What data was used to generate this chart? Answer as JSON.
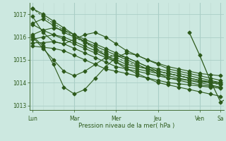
{
  "title": "Pression niveau de la mer( hPa )",
  "bg_color": "#cce8e0",
  "line_color": "#2d5a1b",
  "grid_major_color": "#aacec6",
  "grid_minor_color": "#bcd8d0",
  "ylim": [
    1012.8,
    1017.5
  ],
  "yticks": [
    1013,
    1014,
    1015,
    1016,
    1017
  ],
  "day_labels": [
    "Lun",
    "Mar",
    "Mer",
    "Jeu",
    "Ven",
    "Sa"
  ],
  "day_ticks": [
    0,
    4,
    8,
    12,
    16,
    18
  ],
  "total_steps": 19,
  "series": [
    [
      1017.25,
      1017.0,
      1016.7,
      1016.4,
      1016.1,
      1015.8,
      1015.5,
      1015.2,
      1014.9,
      1014.6,
      1014.4,
      1014.2,
      1014.0,
      1013.9,
      1013.8,
      1013.7,
      1013.6,
      1013.5,
      1013.4
    ],
    [
      1016.6,
      1016.8,
      1016.5,
      1016.2,
      1016.0,
      1015.8,
      1015.6,
      1015.4,
      1015.2,
      1015.0,
      1014.8,
      1014.6,
      1014.4,
      1014.2,
      1014.1,
      1014.0,
      1013.9,
      1013.85,
      1013.8
    ],
    [
      1016.1,
      1016.3,
      1016.4,
      1016.3,
      1016.1,
      1015.9,
      1015.7,
      1015.5,
      1015.3,
      1015.1,
      1014.9,
      1014.7,
      1014.6,
      1014.5,
      1014.4,
      1014.3,
      1014.2,
      1014.1,
      1014.0
    ],
    [
      1015.9,
      1016.0,
      1016.1,
      1016.0,
      1015.8,
      1015.6,
      1015.4,
      1015.2,
      1015.0,
      1014.8,
      1014.7,
      1014.6,
      1014.5,
      1014.4,
      1014.3,
      1014.2,
      1014.1,
      1014.05,
      1014.0
    ],
    [
      1015.75,
      1015.75,
      1015.8,
      1015.7,
      1015.5,
      1015.3,
      1015.1,
      1014.9,
      1014.7,
      1014.6,
      1014.5,
      1014.4,
      1014.3,
      1014.2,
      1014.15,
      1014.1,
      1014.05,
      1014.0,
      1013.95
    ],
    [
      1015.6,
      1015.55,
      1015.5,
      1015.4,
      1015.2,
      1015.0,
      1014.8,
      1014.6,
      1014.5,
      1014.4,
      1014.3,
      1014.2,
      1014.1,
      1014.0,
      1013.95,
      1013.9,
      1013.85,
      1013.8,
      1013.75
    ],
    [
      1016.9,
      1016.2,
      1015.8,
      1015.7,
      1015.9,
      1016.1,
      1016.2,
      1016.0,
      1015.7,
      1015.4,
      1015.2,
      1015.0,
      1014.85,
      1014.7,
      1014.6,
      1014.5,
      1014.4,
      1014.35,
      1014.3
    ],
    [
      1016.05,
      1015.6,
      1014.8,
      1013.8,
      1013.5,
      1013.7,
      1014.2,
      1014.7,
      1015.1,
      1015.3,
      1015.2,
      1015.0,
      1014.8,
      1014.6,
      1014.5,
      1014.4,
      1014.3,
      1014.2,
      1014.1
    ],
    [
      1016.0,
      1015.5,
      1015.0,
      1014.5,
      1014.3,
      1014.5,
      1014.8,
      1015.1,
      1015.2,
      1015.1,
      1014.9,
      1014.7,
      1014.5,
      1014.4,
      1014.3,
      1014.2,
      1014.1,
      1014.0,
      1013.95
    ],
    [
      1016.55,
      1016.3,
      1016.1,
      1015.9,
      1015.7,
      1015.5,
      1015.3,
      1015.1,
      1014.9,
      1014.7,
      1014.6,
      1014.5,
      1014.4,
      1014.3,
      1014.2,
      1014.1,
      1014.0,
      1013.9,
      1013.8
    ]
  ],
  "top_dashed": [
    1017.25,
    1016.9,
    1016.6,
    1016.3,
    1016.0,
    1015.75,
    1015.5,
    1015.3,
    1015.1,
    1014.9,
    1014.75,
    1014.6,
    1014.5,
    1014.4,
    1014.3,
    1014.2,
    1014.1,
    1014.0,
    1013.9
  ],
  "ven_spike_x": [
    15,
    16,
    17,
    18,
    19
  ],
  "ven_spike_y": [
    1016.2,
    1015.2,
    1014.1,
    1013.15,
    1013.4
  ]
}
